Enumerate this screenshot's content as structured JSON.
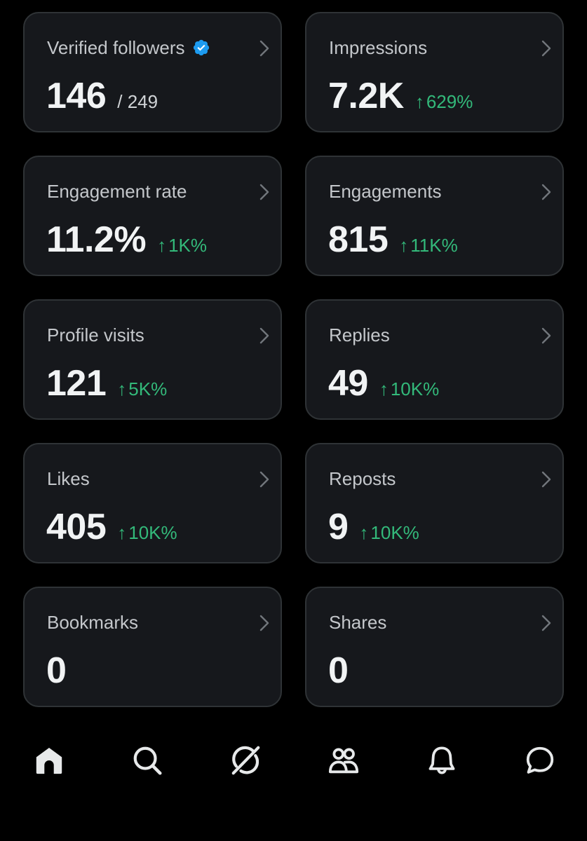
{
  "colors": {
    "background": "#000000",
    "card_background": "#16181c",
    "card_border": "#2f3336",
    "positive_change": "#33b97a",
    "verified_badge": "#1d9bf0"
  },
  "cards": [
    {
      "title": "Verified followers",
      "value": "146",
      "sub": "/ 249",
      "change": "",
      "badge": "verified-icon"
    },
    {
      "title": "Impressions",
      "value": "7.2K",
      "sub": "",
      "change": "629%"
    },
    {
      "title": "Engagement rate",
      "value": "11.2%",
      "sub": "",
      "change": "1K%"
    },
    {
      "title": "Engagements",
      "value": "815",
      "sub": "",
      "change": "11K%"
    },
    {
      "title": "Profile visits",
      "value": "121",
      "sub": "",
      "change": "5K%"
    },
    {
      "title": "Replies",
      "value": "49",
      "sub": "",
      "change": "10K%"
    },
    {
      "title": "Likes",
      "value": "405",
      "sub": "",
      "change": "10K%"
    },
    {
      "title": "Reposts",
      "value": "9",
      "sub": "",
      "change": "10K%"
    },
    {
      "title": "Bookmarks",
      "value": "0",
      "sub": "",
      "change": ""
    },
    {
      "title": "Shares",
      "value": "0",
      "sub": "",
      "change": ""
    }
  ],
  "change_arrow": "↑",
  "bottom_nav": [
    {
      "icon": "home-icon",
      "active": true
    },
    {
      "icon": "search-icon",
      "active": false
    },
    {
      "icon": "grok-icon",
      "active": false
    },
    {
      "icon": "communities-icon",
      "active": false
    },
    {
      "icon": "bell-icon",
      "active": false
    },
    {
      "icon": "messages-icon",
      "active": false
    }
  ]
}
